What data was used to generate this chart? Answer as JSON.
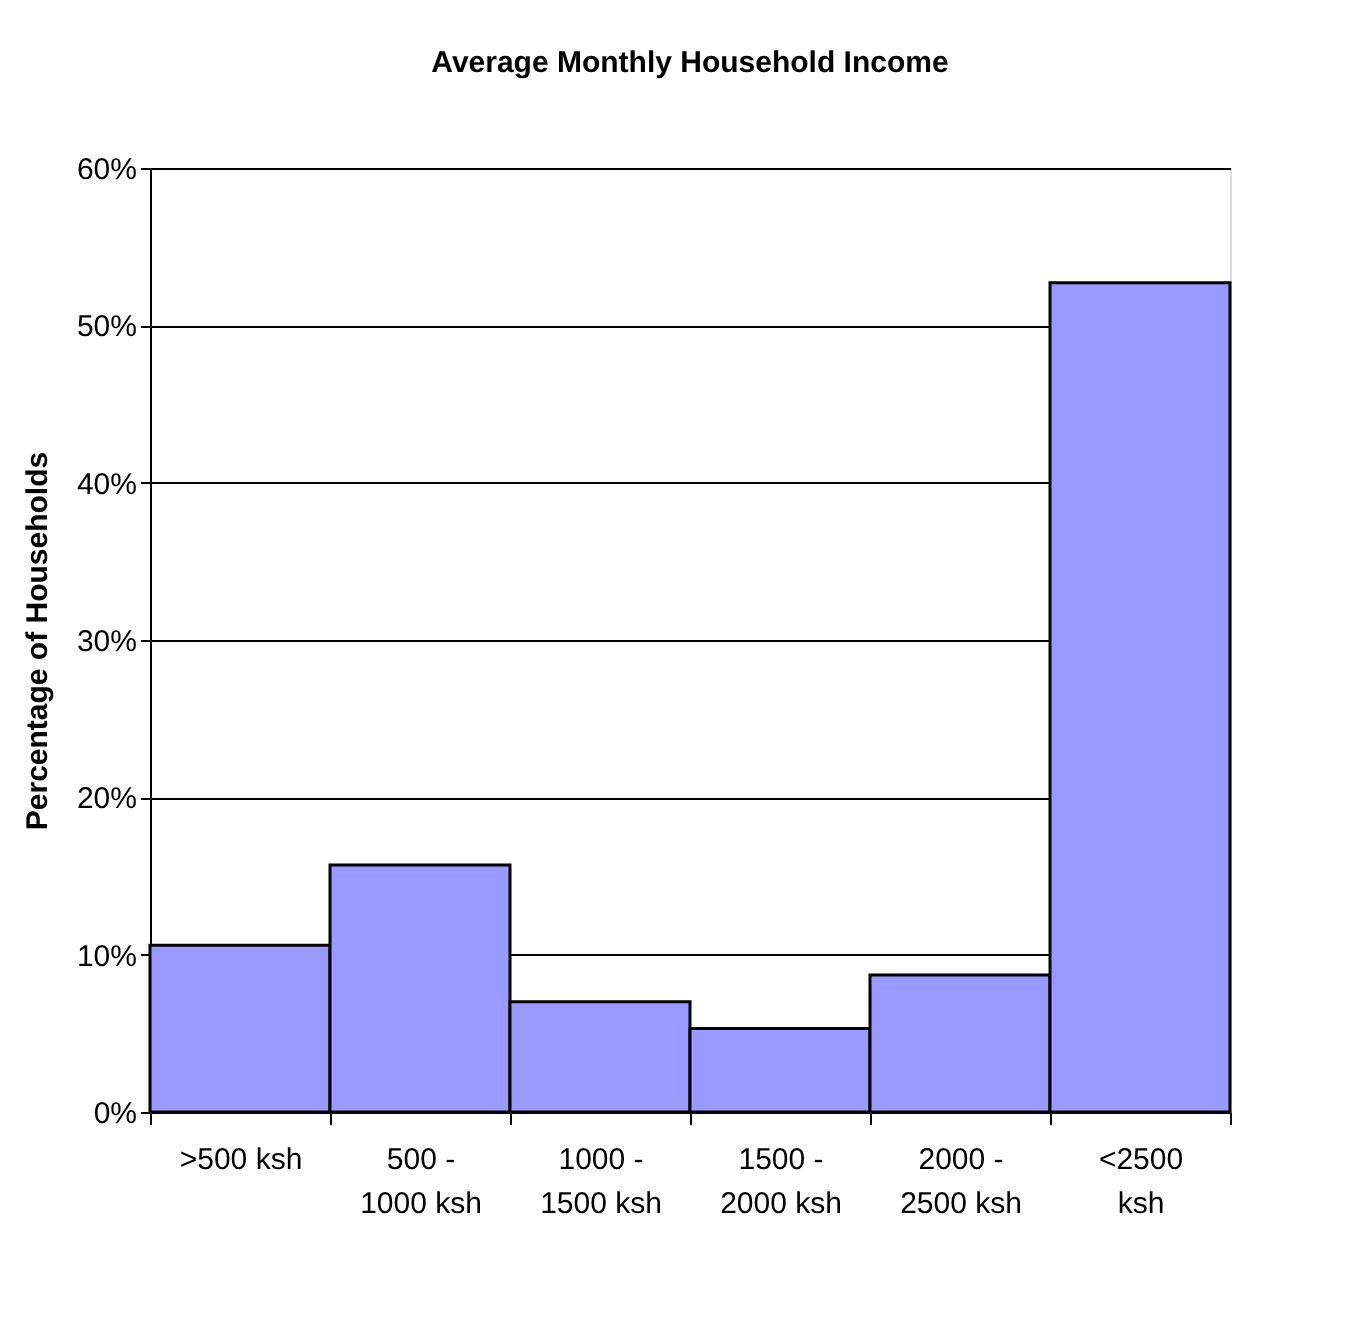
{
  "chart_data": {
    "type": "bar",
    "title": "Average Monthly Household Income",
    "ylabel": "Percentage of Households",
    "categories": [
      ">500 ksh",
      "500 -\n1000 ksh",
      "1000 -\n1500 ksh",
      "1500 -\n2000 ksh",
      "2000 -\n2500 ksh",
      "<2500\nksh"
    ],
    "values": [
      10.6,
      15.7,
      7.0,
      5.3,
      8.7,
      52.7
    ],
    "color": "#9999ff",
    "ylim": [
      0,
      60
    ],
    "yticks": [
      {
        "value": 0,
        "label": "0%"
      },
      {
        "value": 10,
        "label": "10%"
      },
      {
        "value": 20,
        "label": "20%"
      },
      {
        "value": 30,
        "label": "30%"
      },
      {
        "value": 40,
        "label": "40%"
      },
      {
        "value": 50,
        "label": "50%"
      },
      {
        "value": 60,
        "label": "60%"
      }
    ],
    "grid": "y"
  }
}
